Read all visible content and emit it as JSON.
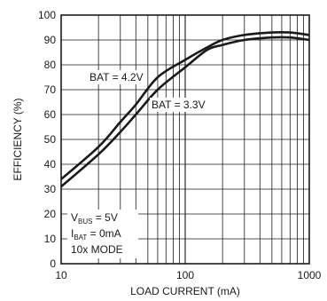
{
  "chart_data": {
    "type": "line",
    "xlabel": "LOAD CURRENT (mA)",
    "ylabel": "EFFICIENCY (%)",
    "x_scale": "log",
    "xlim": [
      10,
      1000
    ],
    "ylim": [
      0,
      100
    ],
    "x_ticks": [
      10,
      100,
      1000
    ],
    "y_ticks": [
      0,
      10,
      20,
      30,
      40,
      50,
      60,
      70,
      80,
      90,
      100
    ],
    "grid": true,
    "series": [
      {
        "name": "BAT = 4.2V",
        "x": [
          10,
          20,
          30,
          40,
          60,
          100,
          150,
          200,
          300,
          500,
          700,
          1000
        ],
        "y": [
          34,
          47,
          57,
          64,
          75,
          82,
          87,
          90,
          92,
          93,
          93,
          92
        ]
      },
      {
        "name": "BAT = 3.3V",
        "x": [
          10,
          20,
          30,
          40,
          60,
          100,
          150,
          200,
          300,
          500,
          700,
          1000
        ],
        "y": [
          31,
          44,
          53,
          60,
          70,
          79,
          86,
          88,
          90,
          91,
          91,
          90
        ]
      }
    ],
    "annotations": {
      "vbus": {
        "main": "V",
        "sub": "BUS",
        "rest": " = 5V"
      },
      "ibat": {
        "main": "I",
        "sub": "BAT",
        "rest": " = 0mA"
      },
      "mode": "10x MODE"
    }
  }
}
